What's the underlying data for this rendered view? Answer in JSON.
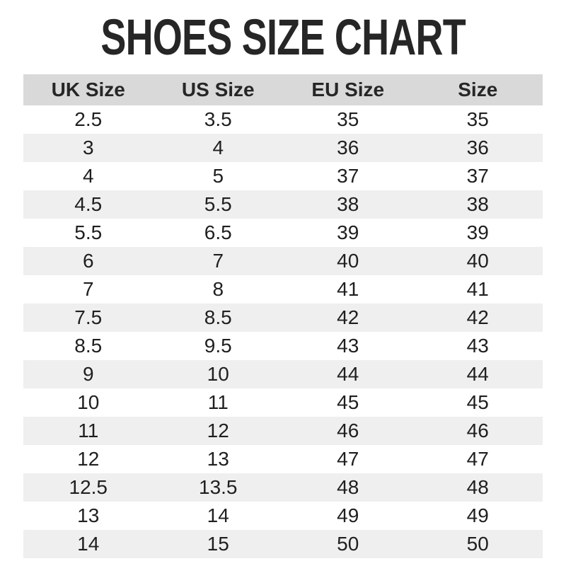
{
  "title": "SHOES SIZE CHART",
  "colors": {
    "title_text": "#262626",
    "header_bg": "#d9d9d9",
    "row_bg": "#ffffff",
    "row_alt_bg": "#efefef",
    "cell_text": "#1f1f1f"
  },
  "chart_data": {
    "type": "table",
    "title": "SHOES SIZE CHART",
    "columns": [
      "UK Size",
      "US Size",
      "EU Size",
      "Size"
    ],
    "rows": [
      [
        "2.5",
        "3.5",
        "35",
        "35"
      ],
      [
        "3",
        "4",
        "36",
        "36"
      ],
      [
        "4",
        "5",
        "37",
        "37"
      ],
      [
        "4.5",
        "5.5",
        "38",
        "38"
      ],
      [
        "5.5",
        "6.5",
        "39",
        "39"
      ],
      [
        "6",
        "7",
        "40",
        "40"
      ],
      [
        "7",
        "8",
        "41",
        "41"
      ],
      [
        "7.5",
        "8.5",
        "42",
        "42"
      ],
      [
        "8.5",
        "9.5",
        "43",
        "43"
      ],
      [
        "9",
        "10",
        "44",
        "44"
      ],
      [
        "10",
        "11",
        "45",
        "45"
      ],
      [
        "11",
        "12",
        "46",
        "46"
      ],
      [
        "12",
        "13",
        "47",
        "47"
      ],
      [
        "12.5",
        "13.5",
        "48",
        "48"
      ],
      [
        "13",
        "14",
        "49",
        "49"
      ],
      [
        "14",
        "15",
        "50",
        "50"
      ]
    ],
    "layout": {
      "header_row": true,
      "zebra_stripes": true,
      "first_data_row_background": "white",
      "grid_lines": false,
      "column_alignment": "center"
    }
  }
}
